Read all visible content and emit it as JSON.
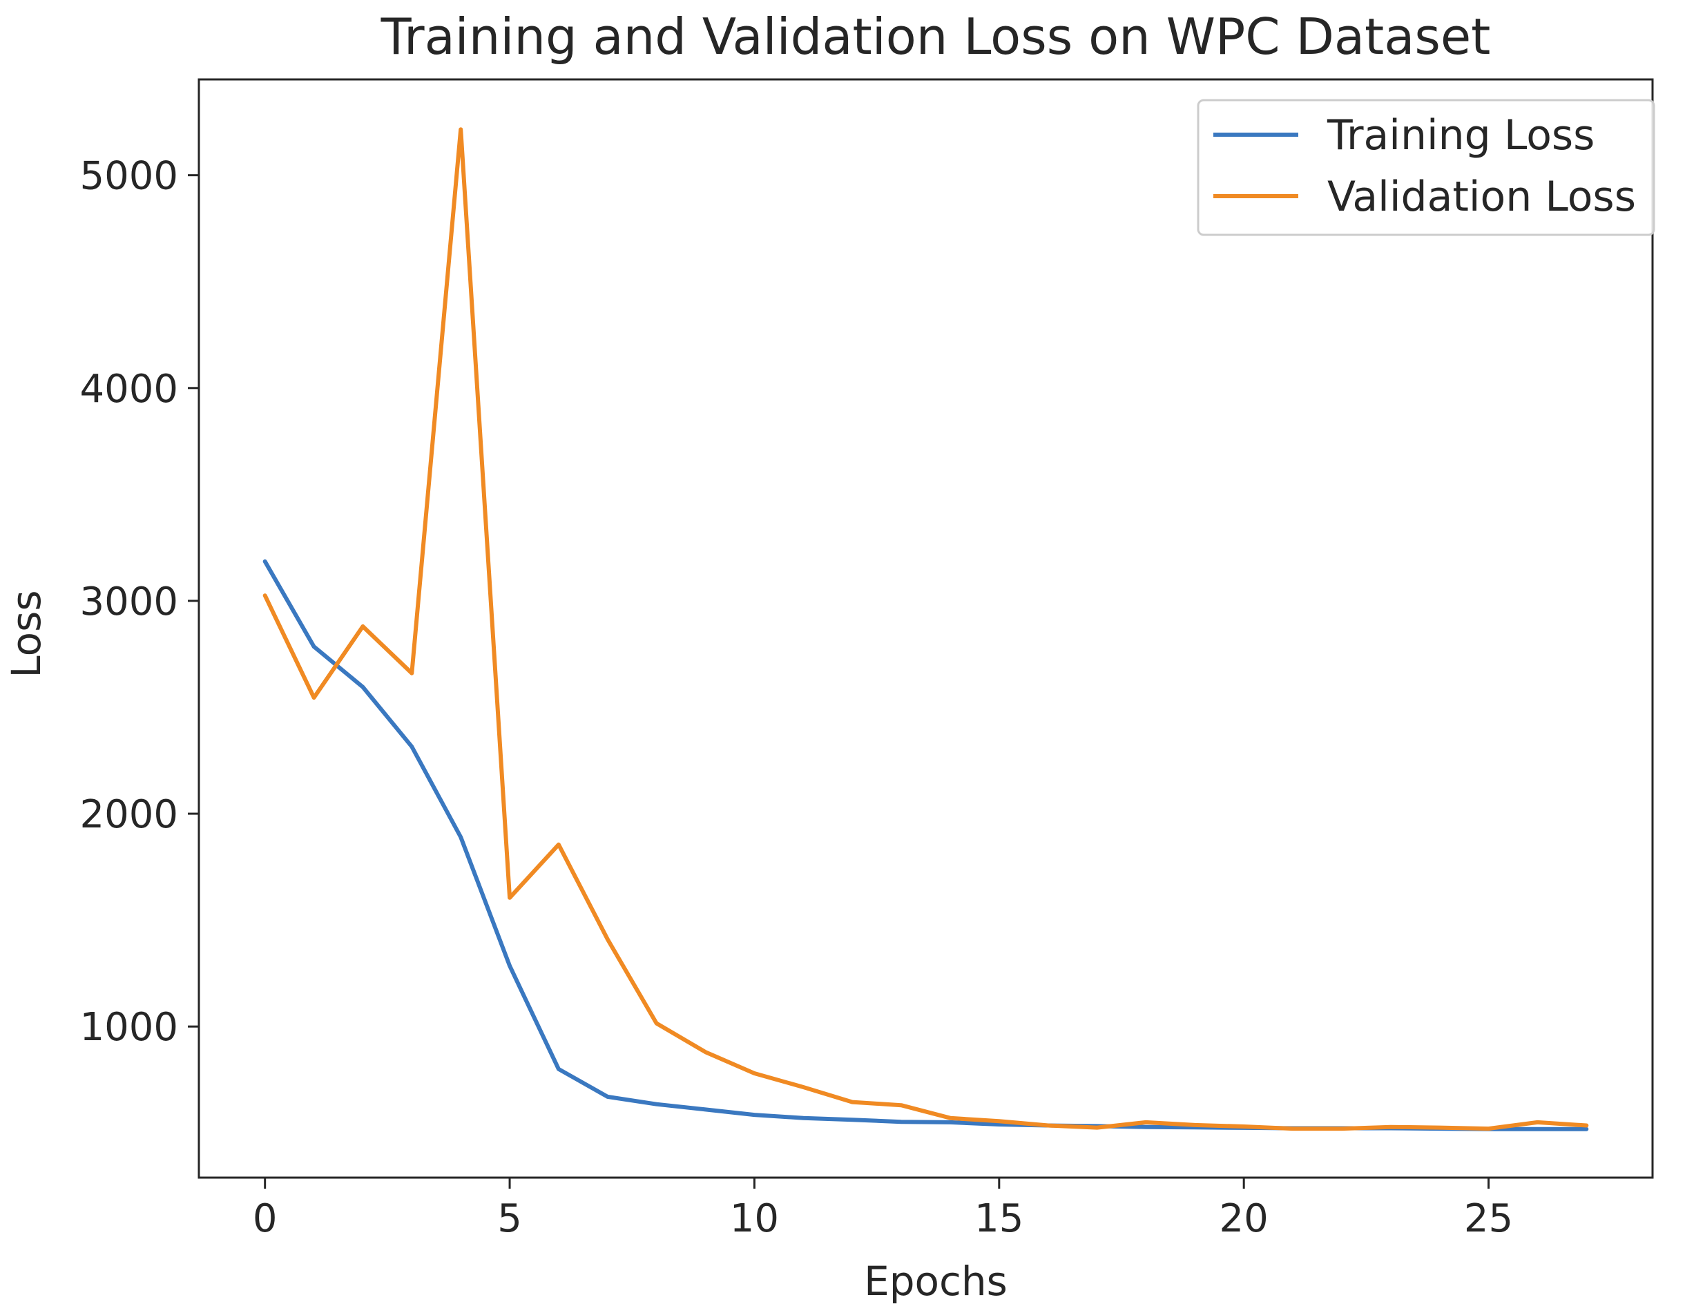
{
  "chart_data": {
    "type": "line",
    "title": "Training and Validation Loss on WPC Dataset",
    "xlabel": "Epochs",
    "ylabel": "Loss",
    "xlim": [
      -1.35,
      28.35
    ],
    "ylim": [
      290,
      5450
    ],
    "xticks": [
      0,
      5,
      10,
      15,
      20,
      25
    ],
    "yticks": [
      1000,
      2000,
      3000,
      4000,
      5000
    ],
    "grid": false,
    "legend_position": "top-right",
    "x": [
      0,
      1,
      2,
      3,
      4,
      5,
      6,
      7,
      8,
      9,
      10,
      11,
      12,
      13,
      14,
      15,
      16,
      17,
      18,
      19,
      20,
      21,
      22,
      23,
      24,
      25,
      26,
      27
    ],
    "series": [
      {
        "name": "Training Loss",
        "color": "#3a78c0",
        "values": [
          3185,
          2785,
          2595,
          2315,
          1890,
          1285,
          800,
          670,
          635,
          610,
          585,
          570,
          562,
          552,
          550,
          540,
          535,
          532,
          528,
          526,
          524,
          522,
          522,
          522,
          520,
          518,
          518,
          518
        ]
      },
      {
        "name": "Validation Loss",
        "color": "#f08a23",
        "values": [
          3025,
          2545,
          2880,
          2660,
          5215,
          1605,
          1855,
          1410,
          1015,
          880,
          780,
          715,
          645,
          630,
          570,
          555,
          535,
          525,
          550,
          537,
          530,
          520,
          520,
          528,
          525,
          520,
          550,
          535
        ]
      }
    ]
  }
}
